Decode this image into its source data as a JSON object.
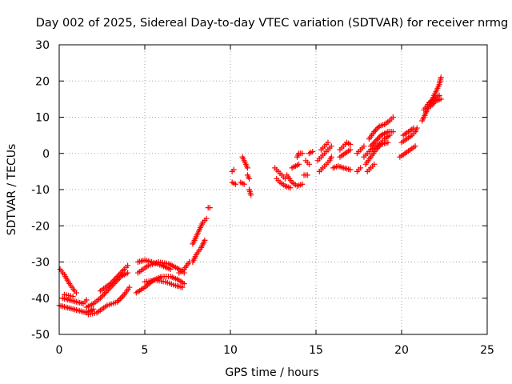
{
  "chart_data": {
    "type": "scatter",
    "title": "Day 002 of 2025, Sidereal Day-to-day VTEC variation (SDTVAR) for receiver nrmg",
    "xlabel": "GPS time / hours",
    "ylabel": "SDTVAR / TECUs",
    "xlim": [
      0,
      25
    ],
    "ylim": [
      -50,
      30
    ],
    "xticks": [
      0,
      5,
      10,
      15,
      20,
      25
    ],
    "yticks": [
      -50,
      -40,
      -30,
      -20,
      -10,
      0,
      10,
      20,
      30
    ],
    "grid": true,
    "marker": "+",
    "color": "#ff0000",
    "series": [
      {
        "name": "SDTVAR",
        "segments": [
          [
            [
              0.05,
              -32
            ],
            [
              0.3,
              -33.5
            ],
            [
              0.6,
              -36
            ],
            [
              0.9,
              -38
            ],
            [
              1.0,
              -38.5
            ]
          ],
          [
            [
              0.2,
              -40
            ],
            [
              0.6,
              -40.5
            ],
            [
              1.0,
              -41
            ],
            [
              1.4,
              -41.5
            ],
            [
              1.6,
              -40.5
            ]
          ],
          [
            [
              0.0,
              -42
            ],
            [
              0.4,
              -42.5
            ],
            [
              0.8,
              -43
            ],
            [
              1.2,
              -43.5
            ],
            [
              1.6,
              -44
            ],
            [
              2.0,
              -43
            ]
          ],
          [
            [
              0.3,
              -39
            ],
            [
              0.8,
              -39.5
            ]
          ],
          [
            [
              1.6,
              -42.5
            ],
            [
              2.0,
              -41.5
            ],
            [
              2.4,
              -40
            ],
            [
              2.8,
              -38
            ],
            [
              3.2,
              -36
            ],
            [
              3.6,
              -34
            ],
            [
              4.0,
              -33
            ]
          ],
          [
            [
              1.7,
              -44.5
            ],
            [
              2.2,
              -44
            ],
            [
              2.8,
              -42
            ],
            [
              3.4,
              -41
            ],
            [
              3.8,
              -39
            ],
            [
              4.1,
              -37
            ]
          ],
          [
            [
              2.4,
              -38
            ],
            [
              3.0,
              -36
            ],
            [
              3.4,
              -34
            ],
            [
              3.8,
              -32
            ],
            [
              4.0,
              -31
            ]
          ],
          [
            [
              4.5,
              -38.5
            ],
            [
              5.0,
              -37
            ],
            [
              5.5,
              -35
            ],
            [
              6.0,
              -34
            ],
            [
              6.5,
              -34
            ],
            [
              7.0,
              -35
            ],
            [
              7.3,
              -36
            ]
          ],
          [
            [
              4.6,
              -33
            ],
            [
              5.2,
              -31
            ],
            [
              5.8,
              -30
            ],
            [
              6.4,
              -30.5
            ],
            [
              7.0,
              -32
            ],
            [
              7.3,
              -33
            ]
          ],
          [
            [
              4.6,
              -30
            ],
            [
              5.0,
              -29.5
            ],
            [
              5.4,
              -30
            ],
            [
              6.0,
              -31
            ],
            [
              6.5,
              -32
            ]
          ],
          [
            [
              5.0,
              -35.5
            ],
            [
              5.6,
              -35
            ],
            [
              6.2,
              -35.5
            ],
            [
              6.8,
              -36.5
            ],
            [
              7.2,
              -37
            ]
          ],
          [
            [
              7.0,
              -33
            ],
            [
              7.3,
              -32
            ],
            [
              7.6,
              -30
            ]
          ],
          [
            [
              7.8,
              -30
            ],
            [
              8.0,
              -28
            ],
            [
              8.3,
              -26
            ],
            [
              8.5,
              -24
            ]
          ],
          [
            [
              7.8,
              -25
            ],
            [
              8.0,
              -23
            ],
            [
              8.2,
              -21
            ],
            [
              8.4,
              -19
            ],
            [
              8.6,
              -18
            ]
          ],
          [
            [
              8.7,
              -15
            ],
            [
              8.8,
              -15
            ]
          ],
          [
            [
              10.1,
              -5
            ],
            [
              10.2,
              -4.5
            ]
          ],
          [
            [
              10.1,
              -8
            ],
            [
              10.3,
              -8.5
            ]
          ],
          [
            [
              10.6,
              -8
            ],
            [
              10.8,
              -8.5
            ]
          ],
          [
            [
              10.7,
              -1
            ],
            [
              10.8,
              -2
            ],
            [
              10.9,
              -3
            ],
            [
              11.0,
              -4
            ]
          ],
          [
            [
              11.0,
              -6
            ],
            [
              11.1,
              -7
            ]
          ],
          [
            [
              11.1,
              -10
            ],
            [
              11.2,
              -11.5
            ]
          ],
          [
            [
              12.6,
              -4
            ],
            [
              12.8,
              -5
            ],
            [
              13.0,
              -6
            ],
            [
              13.2,
              -7
            ]
          ],
          [
            [
              12.7,
              -7
            ],
            [
              12.9,
              -8
            ],
            [
              13.2,
              -9
            ],
            [
              13.5,
              -9.5
            ]
          ],
          [
            [
              13.3,
              -6
            ],
            [
              13.6,
              -8
            ],
            [
              13.9,
              -9
            ],
            [
              14.2,
              -8.5
            ]
          ],
          [
            [
              13.6,
              -4
            ],
            [
              13.8,
              -3.5
            ],
            [
              14.0,
              -3
            ]
          ],
          [
            [
              13.9,
              -1
            ],
            [
              14.0,
              0
            ],
            [
              14.2,
              0
            ]
          ],
          [
            [
              14.4,
              -2
            ],
            [
              14.6,
              -3
            ]
          ],
          [
            [
              14.3,
              -6
            ],
            [
              14.5,
              -6
            ]
          ],
          [
            [
              14.6,
              0
            ],
            [
              14.8,
              0.5
            ]
          ],
          [
            [
              15.2,
              -5
            ],
            [
              15.4,
              -4
            ],
            [
              15.6,
              -3
            ],
            [
              15.8,
              -2
            ],
            [
              15.9,
              -1
            ]
          ],
          [
            [
              15.1,
              -2
            ],
            [
              15.3,
              -1
            ],
            [
              15.5,
              0
            ],
            [
              15.7,
              1
            ],
            [
              15.9,
              2
            ]
          ],
          [
            [
              15.3,
              1
            ],
            [
              15.5,
              2
            ],
            [
              15.7,
              3
            ]
          ],
          [
            [
              16.0,
              -4
            ],
            [
              16.3,
              -3.5
            ],
            [
              16.6,
              -4
            ],
            [
              17.0,
              -4.5
            ]
          ],
          [
            [
              16.4,
              1
            ],
            [
              16.6,
              2
            ],
            [
              16.8,
              3
            ],
            [
              17.0,
              2.5
            ]
          ],
          [
            [
              16.4,
              -1
            ],
            [
              16.7,
              0
            ],
            [
              17.0,
              1
            ]
          ],
          [
            [
              17.4,
              -5
            ],
            [
              17.6,
              -4
            ]
          ],
          [
            [
              17.4,
              0
            ],
            [
              17.6,
              1
            ],
            [
              17.8,
              2
            ]
          ],
          [
            [
              17.8,
              -1
            ],
            [
              18.0,
              0
            ],
            [
              18.2,
              1
            ],
            [
              18.5,
              2
            ],
            [
              18.8,
              3
            ],
            [
              19.0,
              4
            ],
            [
              19.3,
              5
            ]
          ],
          [
            [
              17.9,
              -3
            ],
            [
              18.2,
              -1
            ],
            [
              18.5,
              1
            ],
            [
              18.8,
              2.5
            ],
            [
              19.2,
              3
            ]
          ],
          [
            [
              18.1,
              4
            ],
            [
              18.4,
              6
            ],
            [
              18.7,
              7.5
            ],
            [
              19.0,
              8
            ],
            [
              19.3,
              9
            ],
            [
              19.5,
              10
            ]
          ],
          [
            [
              18.2,
              2
            ],
            [
              18.5,
              3.5
            ],
            [
              18.8,
              5
            ],
            [
              19.2,
              6
            ],
            [
              19.5,
              6
            ]
          ],
          [
            [
              18.0,
              -5
            ],
            [
              18.2,
              -4
            ],
            [
              18.4,
              -3
            ]
          ],
          [
            [
              20.0,
              3
            ],
            [
              20.3,
              4
            ],
            [
              20.6,
              5
            ],
            [
              20.8,
              6
            ],
            [
              20.9,
              7
            ]
          ],
          [
            [
              19.9,
              -1
            ],
            [
              20.2,
              0
            ],
            [
              20.5,
              1
            ],
            [
              20.8,
              2
            ]
          ],
          [
            [
              20.1,
              5
            ],
            [
              20.4,
              6
            ],
            [
              20.7,
              7
            ]
          ],
          [
            [
              21.2,
              9
            ],
            [
              21.4,
              11
            ],
            [
              21.6,
              13
            ],
            [
              21.8,
              15
            ],
            [
              22.0,
              17
            ],
            [
              22.2,
              19
            ],
            [
              22.3,
              21
            ]
          ],
          [
            [
              21.3,
              12
            ],
            [
              21.6,
              14
            ],
            [
              21.9,
              15
            ],
            [
              22.2,
              16
            ]
          ],
          [
            [
              21.7,
              13
            ],
            [
              22.0,
              14.5
            ],
            [
              22.3,
              15
            ]
          ]
        ]
      }
    ]
  }
}
